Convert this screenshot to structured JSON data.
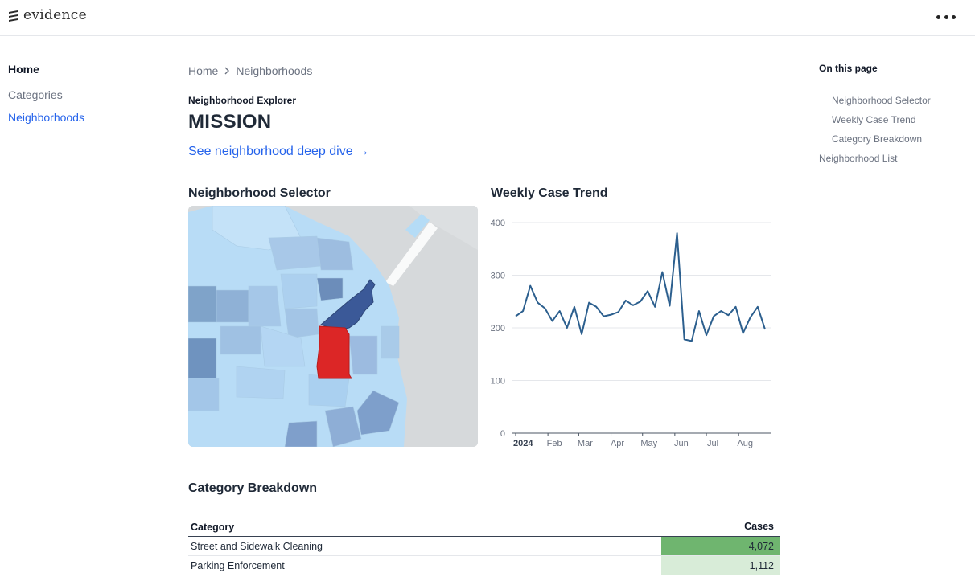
{
  "app": {
    "logo_text": "evidence",
    "menu_icon": "more-dots-icon"
  },
  "leftnav": {
    "home": "Home",
    "items": [
      {
        "label": "Categories",
        "active": false
      },
      {
        "label": "Neighborhoods",
        "active": true
      }
    ]
  },
  "breadcrumb": {
    "items": [
      "Home",
      "Neighborhoods"
    ]
  },
  "page": {
    "eyebrow": "Neighborhood Explorer",
    "title": "MISSION",
    "deep_link": "See neighborhood deep dive →"
  },
  "sections": {
    "selector": "Neighborhood Selector",
    "trend": "Weekly Case Trend",
    "breakdown": "Category Breakdown"
  },
  "map": {
    "selected_color": "#dc2626",
    "highlight_color": "#3b5998"
  },
  "chart_data": {
    "type": "line",
    "title": "",
    "xlabel": "",
    "ylabel": "",
    "ylim": [
      0,
      400
    ],
    "yticks": [
      "0",
      "100",
      "200",
      "300",
      "400"
    ],
    "xticks": [
      {
        "label": "2024",
        "week": 0,
        "bold": true
      },
      {
        "label": "Feb",
        "week": 4.4
      },
      {
        "label": "Mar",
        "week": 8.6
      },
      {
        "label": "Apr",
        "week": 13
      },
      {
        "label": "May",
        "week": 17.3
      },
      {
        "label": "Jun",
        "week": 21.7
      },
      {
        "label": "Jul",
        "week": 26
      },
      {
        "label": "Aug",
        "week": 30.4
      }
    ],
    "xmax_week": 35,
    "series": [
      {
        "values": [
          222,
          232,
          280,
          248,
          237,
          213,
          232,
          200,
          240,
          188,
          248,
          240,
          222,
          225,
          230,
          252,
          243,
          250,
          270,
          240,
          306,
          242,
          380,
          178,
          175,
          232,
          186,
          222,
          232,
          224,
          240,
          190,
          220,
          240,
          197
        ]
      }
    ],
    "color": "#2c5f8e",
    "grid": true
  },
  "table": {
    "headers": {
      "category": "Category",
      "cases": "Cases"
    },
    "rows": [
      {
        "category": "Street and Sidewalk Cleaning",
        "cases": "4,072",
        "bg": "#6fb56f"
      },
      {
        "category": "Parking Enforcement",
        "cases": "1,112",
        "bg": "#d8ecd8"
      }
    ]
  },
  "toc": {
    "title": "On this page",
    "items": [
      {
        "label": "Neighborhood Selector",
        "sub": true
      },
      {
        "label": "Weekly Case Trend",
        "sub": true
      },
      {
        "label": "Category Breakdown",
        "sub": true
      },
      {
        "label": "Neighborhood List",
        "sub": false
      }
    ]
  }
}
